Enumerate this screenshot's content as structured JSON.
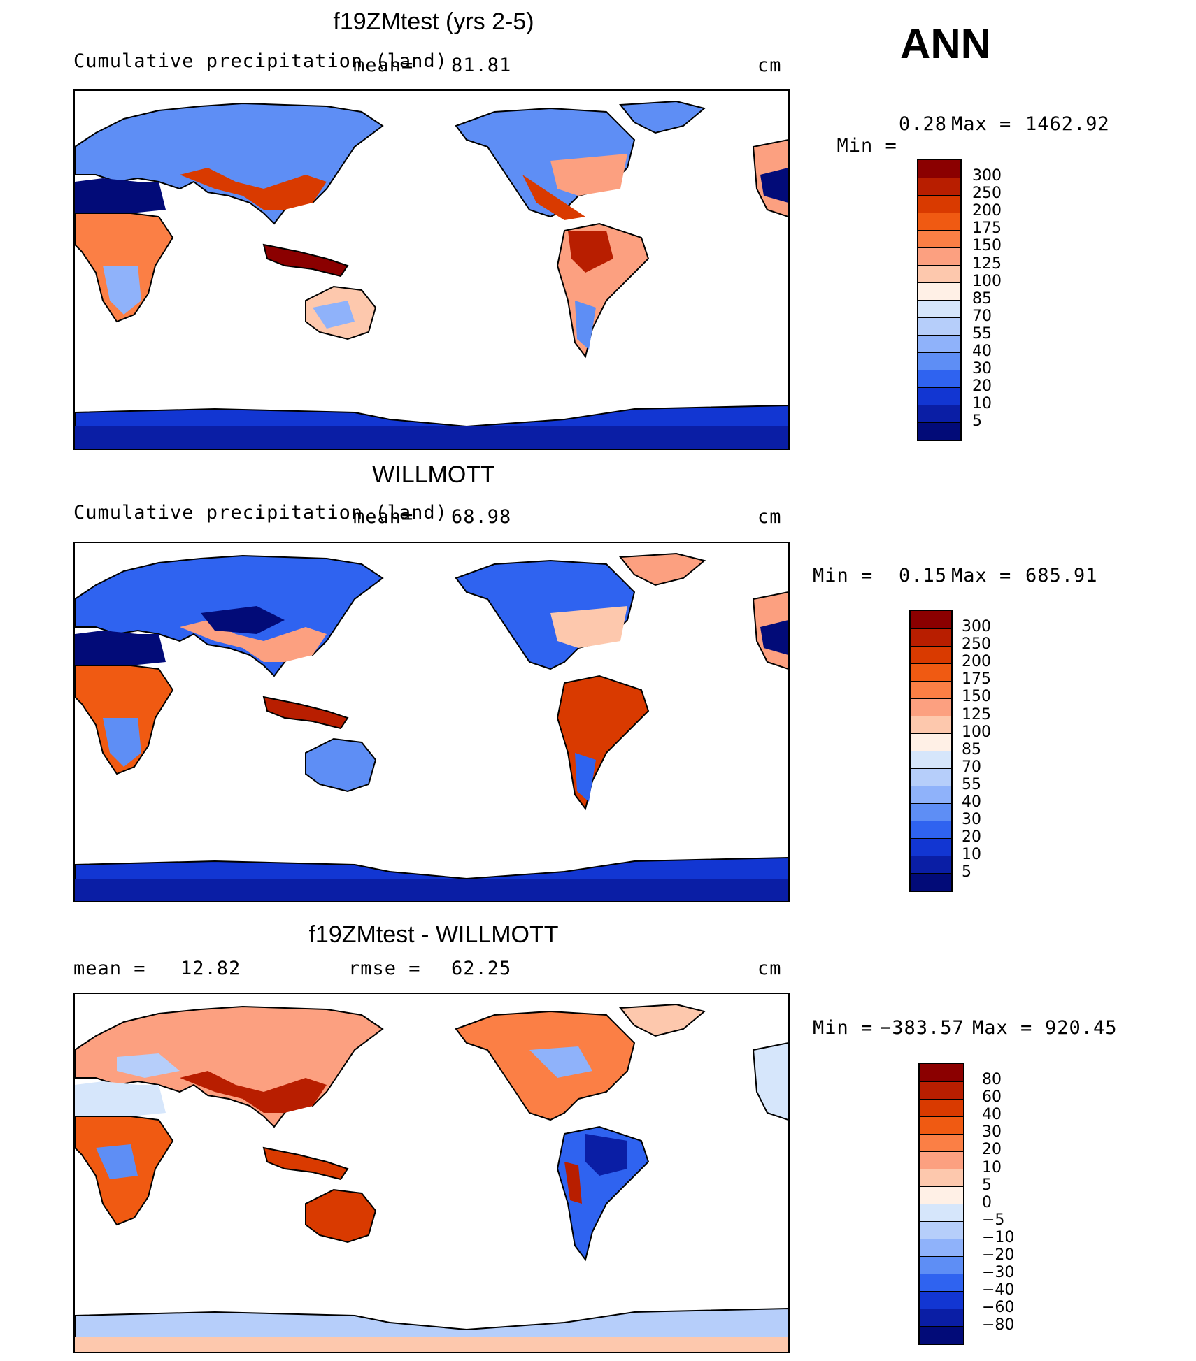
{
  "season": "ANN",
  "units": "cm",
  "panels": [
    {
      "title": "f19ZMtest (yrs 2-5)",
      "left_label": "Cumulative precipitation (land)",
      "mean_label": "mean=",
      "mean_value": "81.81",
      "min_label": "Min =",
      "min_value": "0.28",
      "max_label": "Max =",
      "max_value": "1462.92",
      "levels": [
        "300",
        "250",
        "200",
        "175",
        "150",
        "125",
        "100",
        "85",
        "70",
        "55",
        "40",
        "30",
        "20",
        "10",
        "5"
      ],
      "colors": [
        "#8b0000",
        "#b81e00",
        "#d93a00",
        "#f05a12",
        "#fb7f45",
        "#fca080",
        "#fdc8ad",
        "#fff0e6",
        "#d6e6fb",
        "#b6cefa",
        "#8fb2fa",
        "#5e8ef5",
        "#2f63f0",
        "#1236d2",
        "#0a1ea5",
        "#020b78"
      ]
    },
    {
      "title": "WILLMOTT",
      "left_label": "Cumulative precipitation (land)",
      "mean_label": "mean=",
      "mean_value": "68.98",
      "min_label": "Min =",
      "min_value": "0.15",
      "max_label": "Max =",
      "max_value": "685.91",
      "levels": [
        "300",
        "250",
        "200",
        "175",
        "150",
        "125",
        "100",
        "85",
        "70",
        "55",
        "40",
        "30",
        "20",
        "10",
        "5"
      ],
      "colors": [
        "#8b0000",
        "#b81e00",
        "#d93a00",
        "#f05a12",
        "#fb7f45",
        "#fca080",
        "#fdc8ad",
        "#fff0e6",
        "#d6e6fb",
        "#b6cefa",
        "#8fb2fa",
        "#5e8ef5",
        "#2f63f0",
        "#1236d2",
        "#0a1ea5",
        "#020b78"
      ]
    },
    {
      "title": "f19ZMtest - WILLMOTT",
      "left_label": "mean =",
      "left_value": "12.82",
      "rmse_label": "rmse =",
      "rmse_value": "62.25",
      "min_label": "Min =",
      "min_value": "−383.57",
      "max_label": "Max =",
      "max_value": "920.45",
      "levels": [
        "80",
        "60",
        "40",
        "30",
        "20",
        "10",
        "5",
        "0",
        "−5",
        "−10",
        "−20",
        "−30",
        "−40",
        "−60",
        "−80"
      ],
      "colors": [
        "#8b0000",
        "#b81e00",
        "#d93a00",
        "#f05a12",
        "#fb7f45",
        "#fca080",
        "#fdc8ad",
        "#fff0e6",
        "#d6e6fb",
        "#b6cefa",
        "#8fb2fa",
        "#5e8ef5",
        "#2f63f0",
        "#1236d2",
        "#0a1ea5",
        "#020b78"
      ]
    }
  ]
}
